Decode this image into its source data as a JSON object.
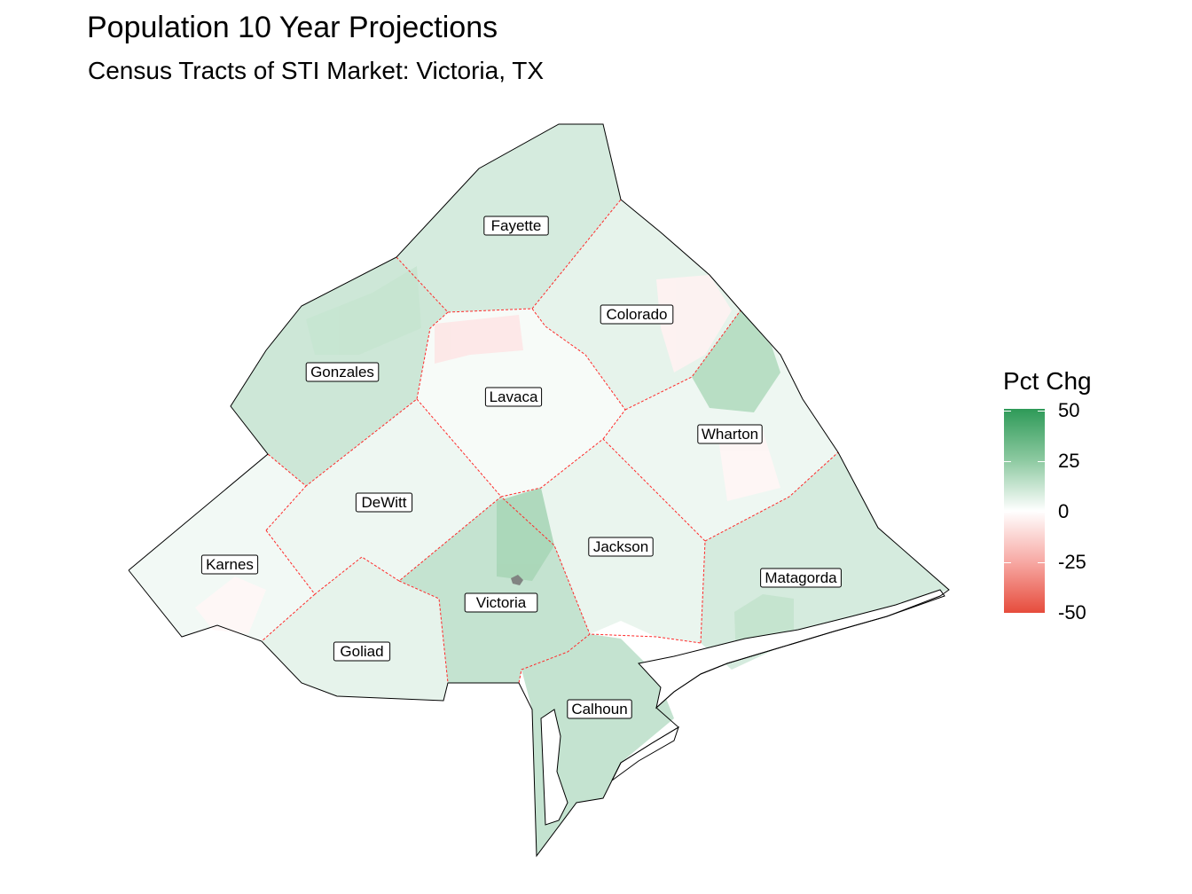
{
  "title": "Population 10 Year Projections",
  "subtitle": "Census Tracts of STI Market: Victoria, TX",
  "legend": {
    "title": "Pct Chg",
    "ticks": [
      "50",
      "25",
      "0",
      "-25",
      "-50"
    ],
    "colors": {
      "high": "#2e9a58",
      "mid": "#ffffff",
      "low": "#e64c3c"
    }
  },
  "counties": [
    {
      "name": "Fayette",
      "pct_chg": 10
    },
    {
      "name": "Colorado",
      "pct_chg": 6
    },
    {
      "name": "Gonzales",
      "pct_chg": 12
    },
    {
      "name": "Lavaca",
      "pct_chg": 2
    },
    {
      "name": "Wharton",
      "pct_chg": 4
    },
    {
      "name": "DeWitt",
      "pct_chg": 4
    },
    {
      "name": "Karnes",
      "pct_chg": 3
    },
    {
      "name": "Jackson",
      "pct_chg": 5
    },
    {
      "name": "Victoria",
      "pct_chg": 14
    },
    {
      "name": "Matagorda",
      "pct_chg": 10
    },
    {
      "name": "Goliad",
      "pct_chg": 6
    },
    {
      "name": "Calhoun",
      "pct_chg": 14
    }
  ]
}
